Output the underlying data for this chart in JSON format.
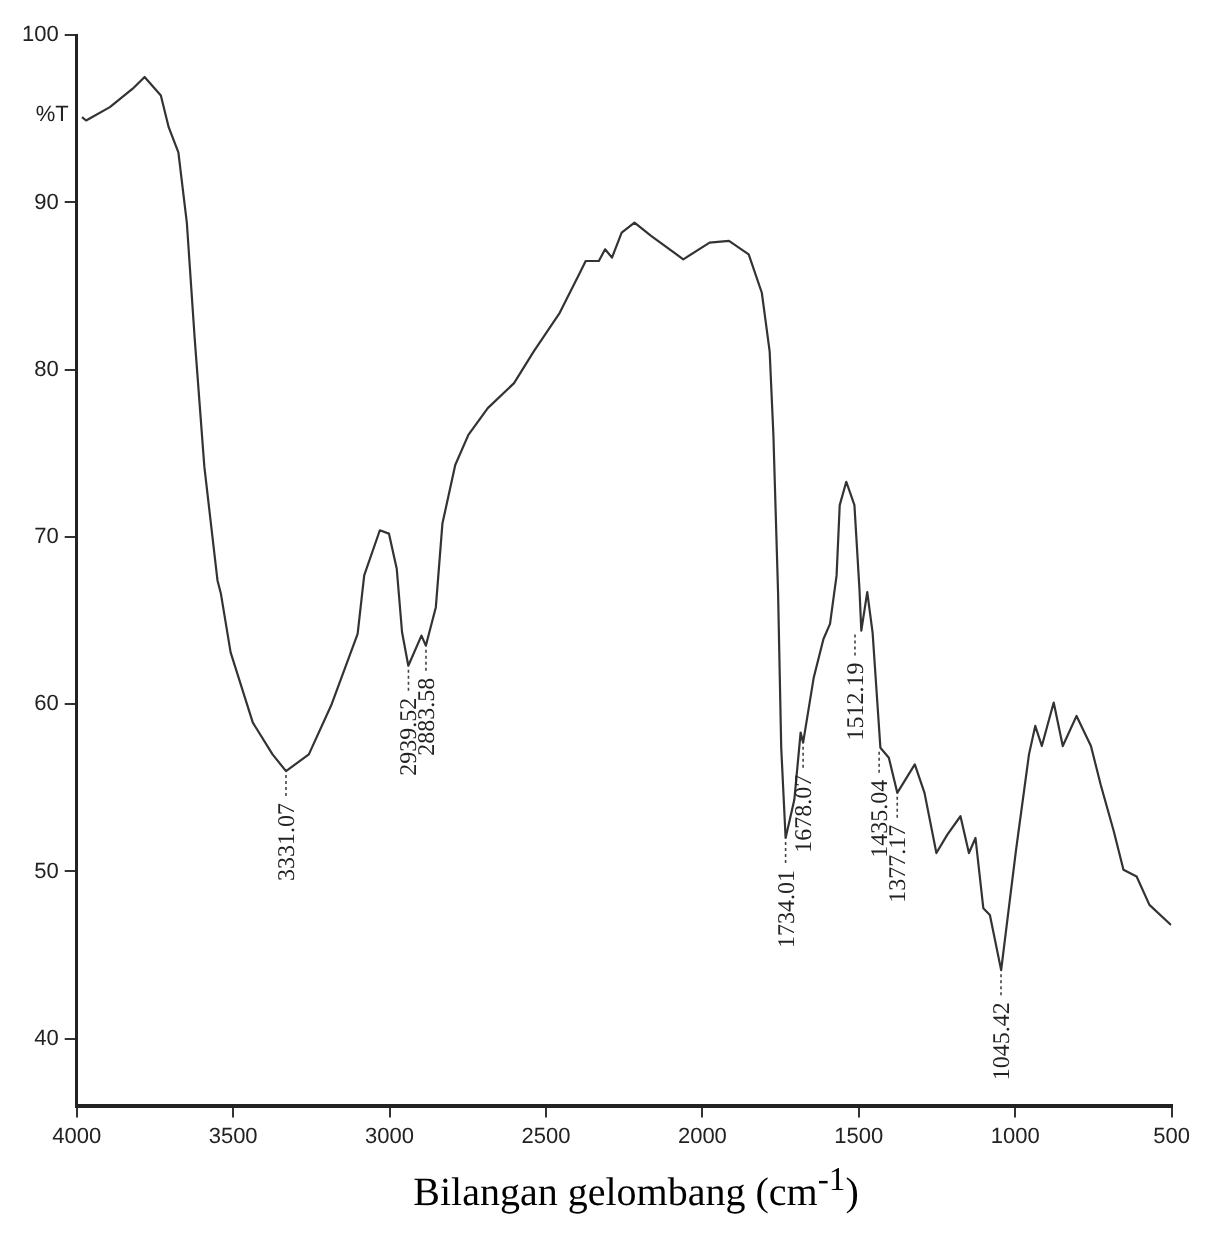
{
  "chart_data": {
    "type": "line",
    "xlabel": "Bilangan gelombang (cm$^{-1}$)",
    "ylabel": "%T",
    "xlim": [
      4000,
      500
    ],
    "xticks": [
      4000,
      3500,
      3000,
      2500,
      2000,
      1500,
      1000,
      500
    ],
    "ylim": [
      36,
      100
    ],
    "yticks": [
      40,
      50,
      60,
      70,
      80,
      90,
      100
    ],
    "grid": false,
    "legend": false,
    "marker": "none",
    "line_style": "solid",
    "series": [
      {
        "color": "#333333",
        "x": [
          3983,
          3970,
          3894,
          3821,
          3783,
          3731,
          3706,
          3675,
          3648,
          3623,
          3592,
          3550,
          3539,
          3508,
          3437,
          3374,
          3331,
          3258,
          3185,
          3102,
          3081,
          3031,
          3002,
          2977,
          2960,
          2940,
          2898,
          2884,
          2852,
          2831,
          2790,
          2748,
          2686,
          2602,
          2539,
          2456,
          2394,
          2373,
          2331,
          2311,
          2289,
          2258,
          2217,
          2164,
          2061,
          1977,
          1915,
          1852,
          1810,
          1785,
          1773,
          1758,
          1748,
          1734,
          1706,
          1686,
          1678,
          1644,
          1613,
          1592,
          1571,
          1561,
          1540,
          1514,
          1498,
          1492,
          1473,
          1456,
          1431,
          1404,
          1377,
          1321,
          1290,
          1252,
          1217,
          1175,
          1148,
          1127,
          1102,
          1081,
          1045,
          998,
          956,
          936,
          915,
          877,
          848,
          804,
          758,
          727,
          685,
          654,
          612,
          571,
          502
        ],
        "values": [
          95.1,
          94.9,
          95.7,
          96.8,
          97.5,
          96.4,
          94.5,
          93.0,
          88.8,
          81.9,
          74.2,
          67.4,
          66.6,
          63.1,
          58.9,
          57.0,
          56.0,
          57.0,
          60.0,
          64.2,
          67.7,
          70.4,
          70.2,
          68.1,
          64.3,
          62.3,
          64.1,
          63.5,
          65.8,
          70.8,
          74.3,
          76.1,
          77.7,
          79.2,
          81.1,
          83.4,
          85.7,
          86.5,
          86.5,
          87.2,
          86.7,
          88.2,
          88.8,
          88.0,
          86.6,
          87.6,
          87.7,
          86.9,
          84.6,
          81.1,
          76.1,
          66.6,
          57.4,
          52.0,
          54.3,
          58.3,
          57.7,
          61.6,
          63.9,
          64.8,
          67.7,
          71.9,
          73.3,
          71.9,
          66.9,
          64.4,
          66.7,
          64.3,
          57.4,
          56.8,
          54.7,
          56.4,
          54.7,
          51.1,
          52.2,
          53.3,
          51.1,
          52.0,
          47.8,
          47.4,
          44.1,
          51.2,
          57.0,
          58.7,
          57.5,
          60.1,
          57.5,
          59.3,
          57.5,
          55.2,
          52.4,
          50.1,
          49.7,
          48.0,
          46.8
        ]
      }
    ],
    "annotations": [
      {
        "text": "3331.07",
        "x": 3331.07,
        "y": 56.0
      },
      {
        "text": "2939.52",
        "x": 2939.52,
        "y": 62.3
      },
      {
        "text": "2883.58",
        "x": 2883.58,
        "y": 63.5
      },
      {
        "text": "1734.01",
        "x": 1734.01,
        "y": 52.0
      },
      {
        "text": "1678.07",
        "x": 1678.07,
        "y": 57.7
      },
      {
        "text": "1512.19",
        "x": 1512.19,
        "y": 64.4
      },
      {
        "text": "1435.04",
        "x": 1435.04,
        "y": 57.4
      },
      {
        "text": "1377.17",
        "x": 1377.17,
        "y": 54.7
      },
      {
        "text": "1045.42",
        "x": 1045.42,
        "y": 44.1
      }
    ]
  }
}
